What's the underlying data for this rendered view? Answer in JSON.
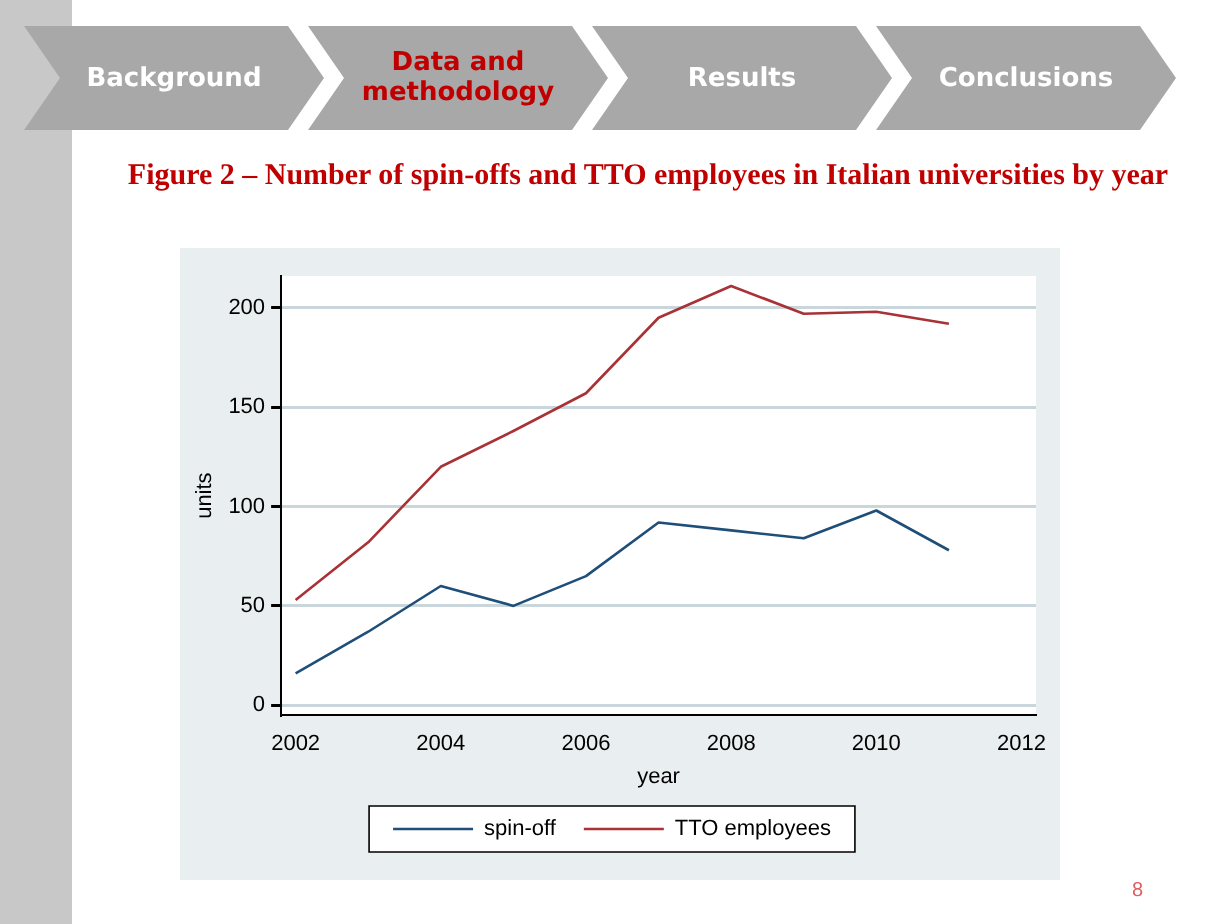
{
  "chart_data": {
    "type": "line",
    "title": "Figure 2 – Number of spin-offs and TTO employees in Italian universities by year",
    "xlabel": "year",
    "ylabel": "units",
    "x": [
      2002,
      2003,
      2004,
      2005,
      2006,
      2007,
      2008,
      2009,
      2010,
      2011
    ],
    "series": [
      {
        "name": "spin-off",
        "color": "#1f4e79",
        "values": [
          16,
          37,
          60,
          50,
          65,
          92,
          88,
          84,
          98,
          78
        ]
      },
      {
        "name": "TTO employees",
        "color": "#a83236",
        "values": [
          53,
          82,
          120,
          138,
          157,
          195,
          211,
          197,
          198,
          192
        ]
      }
    ],
    "xlim": [
      2001.8,
      2012.2
    ],
    "xticks": [
      2002,
      2004,
      2006,
      2008,
      2010,
      2012
    ],
    "ylim": [
      -5,
      216
    ],
    "yticks": [
      0,
      50,
      100,
      150,
      200
    ],
    "grid": "y",
    "legend": "bottom",
    "marker": "none",
    "line_style": "solid",
    "annotations": [
      "Background",
      "Data and methodology",
      "Results",
      "Conclusions",
      "8"
    ]
  }
}
